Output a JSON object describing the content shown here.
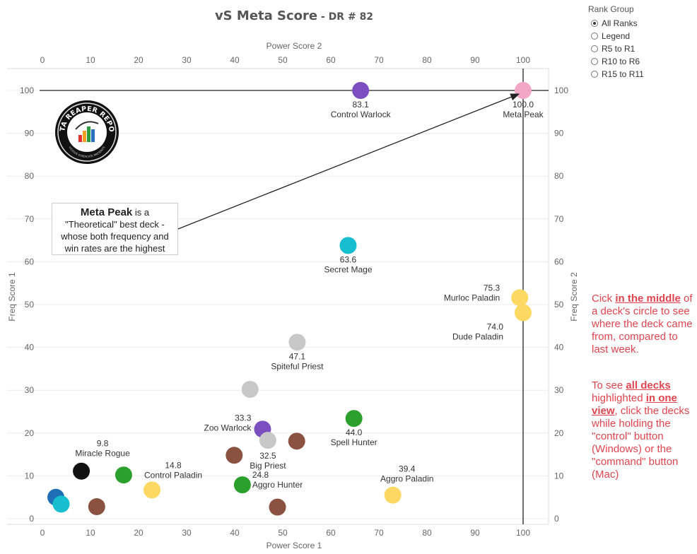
{
  "header": {
    "title": "vS Meta Score",
    "subtitle": " - DR # 82"
  },
  "rank_group": {
    "title": "Rank Group",
    "options": [
      {
        "label": "All Ranks",
        "selected": true
      },
      {
        "label": "Legend",
        "selected": false
      },
      {
        "label": "R5 to R1",
        "selected": false
      },
      {
        "label": "R10 to R6",
        "selected": false
      },
      {
        "label": "R15 to R11",
        "selected": false
      }
    ]
  },
  "instructions": {
    "p1_a": "Cick ",
    "p1_b": "in the middle",
    "p1_c": " of a deck's circle to see where the deck came from, compared to last week.",
    "p2_a": "To see ",
    "p2_b": "all decks ",
    "p2_c": " highlighted ",
    "p2_d": "in one view",
    "p2_e": ", click the decks while holding the \"control\" button (Windows) or the \"command\" button (Mac)"
  },
  "callout": {
    "title": "Meta Peak",
    "text_a": " is a",
    "text_b": "\"Theoretical\" best deck -",
    "text_c": "whose both frequency and",
    "text_d": "win rates are the highest"
  },
  "logo": {
    "text_top": "DATA REAPER REPORT",
    "text_bottom": "VICIOUS SYNDICATE PRESENTS"
  },
  "colors": {
    "warlock": "#7b4fbf",
    "mage": "#17becf",
    "paladin": "#fdd863",
    "priest": "#c8c8c8",
    "hunter": "#2ca02c",
    "rogue": "#111111",
    "druid": "#8b5242",
    "shaman": "#1f6fb4",
    "meta": "#f2a6c8",
    "instr": "#e0454f"
  },
  "chart_data": {
    "type": "scatter",
    "xlabel": "Power Score 1",
    "x2label": "Power Score 2",
    "ylabel": "Freq Score 1",
    "y2label": "Freq Score 2",
    "xlim": [
      -5,
      105
    ],
    "ylim": [
      -1,
      105
    ],
    "xticks": [
      0,
      10,
      20,
      30,
      40,
      50,
      60,
      70,
      80,
      90,
      100
    ],
    "yticks": [
      0,
      10,
      20,
      30,
      40,
      50,
      60,
      70,
      80,
      90,
      100
    ],
    "grid": true,
    "reference_lines": {
      "x": 100,
      "y": 100
    },
    "points": [
      {
        "x": 100,
        "y": 100,
        "class": "meta",
        "score": "100.0",
        "name": "Meta Peak"
      },
      {
        "x": 66.2,
        "y": 100,
        "class": "warlock",
        "score": "83.1",
        "name": "Control Warlock"
      },
      {
        "x": 63.6,
        "y": 63.8,
        "class": "mage",
        "score": "63.6",
        "name": "Secret Mage"
      },
      {
        "x": 99.3,
        "y": 51.6,
        "class": "paladin",
        "score": "75.3",
        "name": "Murloc Paladin"
      },
      {
        "x": 100,
        "y": 48.1,
        "class": "paladin",
        "score": "74.0",
        "name": "Dude Paladin"
      },
      {
        "x": 53,
        "y": 41.2,
        "class": "priest",
        "score": "47.1",
        "name": "Spiteful Priest"
      },
      {
        "x": 43.2,
        "y": 30.2,
        "class": "priest"
      },
      {
        "x": 64.8,
        "y": 23.4,
        "class": "hunter",
        "score": "44.0",
        "name": "Spell Hunter"
      },
      {
        "x": 45.8,
        "y": 20.9,
        "class": "warlock",
        "score": "33.3",
        "name": "Zoo Warlock"
      },
      {
        "x": 46.9,
        "y": 18.3,
        "class": "priest",
        "score": "32.5",
        "name": "Big Priest"
      },
      {
        "x": 52.9,
        "y": 18.1,
        "class": "druid"
      },
      {
        "x": 39.9,
        "y": 14.8,
        "class": "druid"
      },
      {
        "x": 41.6,
        "y": 7.9,
        "class": "hunter",
        "score": "24.8",
        "name": "Aggro Hunter"
      },
      {
        "x": 48.9,
        "y": 2.7,
        "class": "druid"
      },
      {
        "x": 72.9,
        "y": 5.5,
        "class": "paladin",
        "score": "39.4",
        "name": "Aggro Paladin"
      },
      {
        "x": 8.1,
        "y": 11.1,
        "class": "rogue",
        "score": "9.8",
        "name": "Miracle Rogue"
      },
      {
        "x": 16.9,
        "y": 10.2,
        "class": "hunter"
      },
      {
        "x": 22.8,
        "y": 6.7,
        "class": "paladin",
        "score": "14.8",
        "name": "Control Paladin"
      },
      {
        "x": 2.8,
        "y": 5,
        "class": "shaman"
      },
      {
        "x": 3.9,
        "y": 3.4,
        "class": "mage"
      },
      {
        "x": 11.3,
        "y": 2.8,
        "class": "druid"
      }
    ]
  }
}
